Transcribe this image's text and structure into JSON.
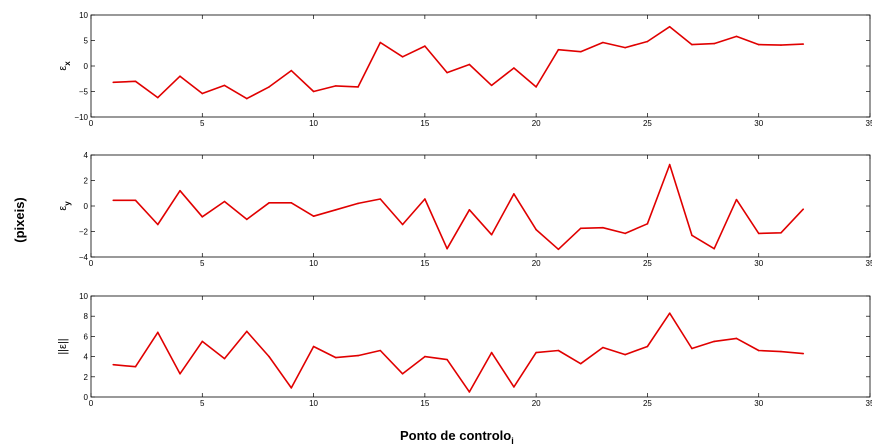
{
  "figure": {
    "common_ylabel": "(pixeis)",
    "xlabel_main": "Ponto de controlo",
    "xlabel_sub": "i"
  },
  "chart_data": [
    {
      "type": "line",
      "title": "",
      "ylabel_main": "ε",
      "ylabel_sub": "x",
      "xlim": [
        0,
        35
      ],
      "ylim": [
        -10,
        10
      ],
      "xticks": [
        0,
        5,
        10,
        15,
        20,
        25,
        30,
        35
      ],
      "yticks": [
        -10,
        -5,
        0,
        5,
        10
      ],
      "ytick_labels": [
        "−10",
        "−5",
        "0",
        "5",
        "10"
      ],
      "grid": false,
      "color": "#e00000",
      "x": [
        1,
        2,
        3,
        4,
        5,
        6,
        7,
        8,
        9,
        10,
        11,
        12,
        13,
        14,
        15,
        16,
        17,
        18,
        19,
        20,
        21,
        22,
        23,
        24,
        25,
        26,
        27,
        28,
        29,
        30,
        31,
        32
      ],
      "values": [
        -3.2,
        -3.0,
        -6.2,
        -2.0,
        -5.4,
        -3.8,
        -6.4,
        -4.1,
        -0.9,
        -5.0,
        -3.9,
        -4.1,
        4.6,
        1.8,
        3.9,
        -1.3,
        0.3,
        -3.8,
        -0.4,
        -4.1,
        3.2,
        2.8,
        4.6,
        3.6,
        4.8,
        7.7,
        4.2,
        4.4,
        5.8,
        4.2,
        4.1,
        4.3
      ]
    },
    {
      "type": "line",
      "title": "",
      "ylabel_main": "ε",
      "ylabel_sub": "y",
      "xlim": [
        0,
        35
      ],
      "ylim": [
        -4,
        4
      ],
      "xticks": [
        0,
        5,
        10,
        15,
        20,
        25,
        30,
        35
      ],
      "yticks": [
        -4,
        -2,
        0,
        2,
        4
      ],
      "ytick_labels": [
        "−4",
        "−2",
        "0",
        "2",
        "4"
      ],
      "grid": false,
      "color": "#e00000",
      "x": [
        1,
        2,
        3,
        4,
        5,
        6,
        7,
        8,
        9,
        10,
        11,
        12,
        13,
        14,
        15,
        16,
        17,
        18,
        19,
        20,
        21,
        22,
        23,
        24,
        25,
        26,
        27,
        28,
        29,
        30,
        31,
        32
      ],
      "values": [
        0.45,
        0.45,
        -1.45,
        1.2,
        -0.85,
        0.35,
        -1.05,
        0.25,
        0.25,
        -0.8,
        -0.3,
        0.2,
        0.55,
        -1.45,
        0.55,
        -3.35,
        -0.3,
        -2.25,
        0.95,
        -1.85,
        -3.4,
        -1.75,
        -1.7,
        -2.15,
        -1.4,
        3.25,
        -2.3,
        -3.35,
        0.5,
        -2.15,
        -2.1,
        -0.25
      ]
    },
    {
      "type": "line",
      "title": "",
      "ylabel_main": "||ε||",
      "ylabel_sub": "",
      "xlim": [
        0,
        35
      ],
      "ylim": [
        0,
        10
      ],
      "xticks": [
        0,
        5,
        10,
        15,
        20,
        25,
        30,
        35
      ],
      "yticks": [
        0,
        2,
        4,
        6,
        8,
        10
      ],
      "ytick_labels": [
        "0",
        "2",
        "4",
        "6",
        "8",
        "10"
      ],
      "grid": false,
      "color": "#e00000",
      "x": [
        1,
        2,
        3,
        4,
        5,
        6,
        7,
        8,
        9,
        10,
        11,
        12,
        13,
        14,
        15,
        16,
        17,
        18,
        19,
        20,
        21,
        22,
        23,
        24,
        25,
        26,
        27,
        28,
        29,
        30,
        31,
        32
      ],
      "values": [
        3.2,
        3.0,
        6.4,
        2.3,
        5.5,
        3.8,
        6.5,
        4.0,
        0.9,
        5.0,
        3.9,
        4.1,
        4.6,
        2.3,
        4.0,
        3.7,
        0.5,
        4.4,
        1.0,
        4.4,
        4.6,
        3.3,
        4.9,
        4.2,
        5.0,
        8.3,
        4.8,
        5.5,
        5.8,
        4.6,
        4.5,
        4.3
      ]
    }
  ]
}
